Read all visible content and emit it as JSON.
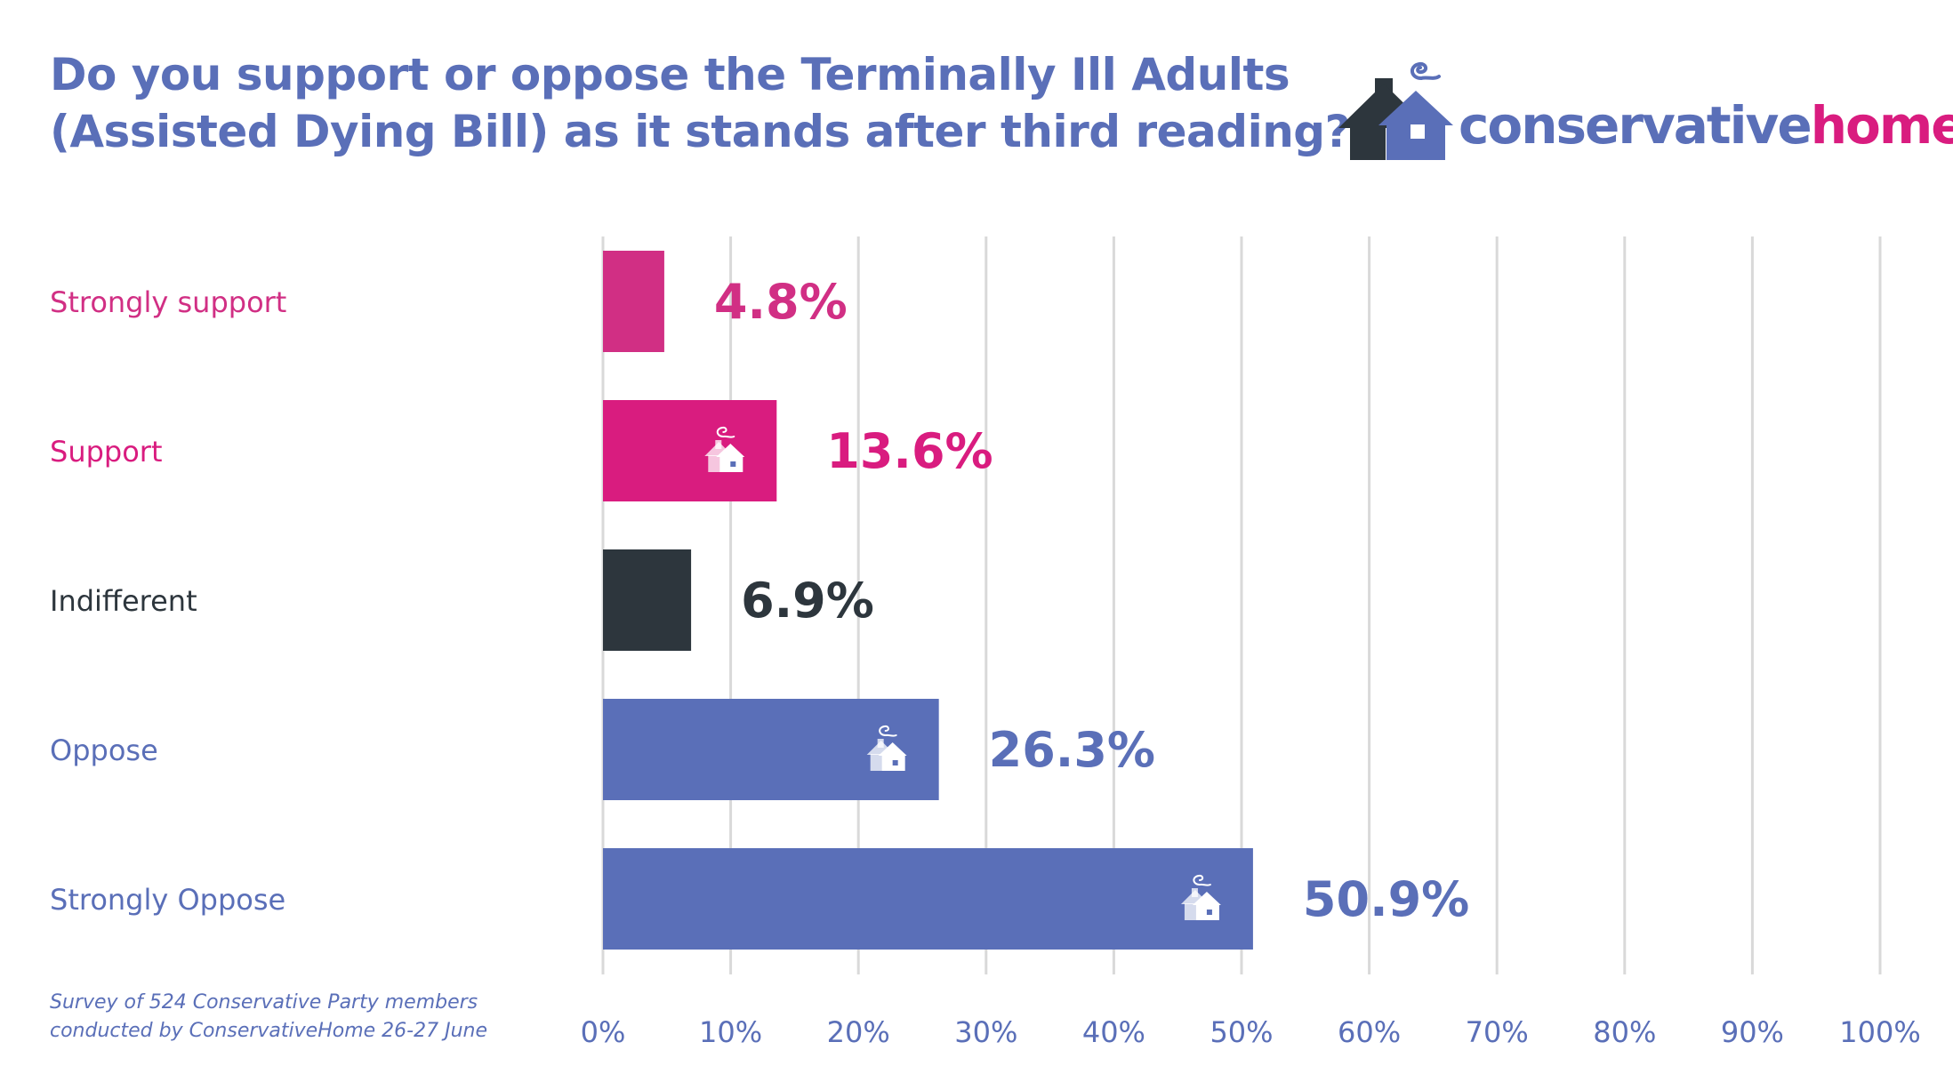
{
  "title": {
    "line1": "Do you support or oppose the Terminally Ill Adults",
    "line2": "(Assisted Dying Bill) as it stands after third reading?"
  },
  "logo": {
    "part1": "conservative",
    "part2": "home",
    "icon": "house-chimney-smoke-icon"
  },
  "footnote": {
    "line1": "Survey of 524 Conservative Party members",
    "line2": "conducted by ConservativeHome 26-27 June"
  },
  "colors": {
    "title": "#5a6fb8",
    "strongly_support": "#d12f84",
    "support": "#d91c7f",
    "indifferent": "#2d363d",
    "oppose": "#5a6fb8",
    "gridline": "#d9d9d9"
  },
  "chart_data": {
    "type": "bar",
    "orientation": "horizontal",
    "categories": [
      "Strongly support",
      "Support",
      "Indifferent",
      "Oppose",
      "Strongly Oppose"
    ],
    "values": [
      4.8,
      13.6,
      6.9,
      26.3,
      50.9
    ],
    "value_labels": [
      "4.8%",
      "13.6%",
      "6.9%",
      "26.3%",
      "50.9%"
    ],
    "bar_colors": [
      "#d12f84",
      "#d91c7f",
      "#2d363d",
      "#5a6fb8",
      "#5a6fb8"
    ],
    "label_colors": [
      "#d12f84",
      "#d91c7f",
      "#2d363d",
      "#5a6fb8",
      "#5a6fb8"
    ],
    "bar_icons": [
      false,
      true,
      false,
      true,
      true
    ],
    "xlim": [
      0,
      100
    ],
    "xticks": [
      0,
      10,
      20,
      30,
      40,
      50,
      60,
      70,
      80,
      90,
      100
    ],
    "xtick_labels": [
      "0%",
      "10%",
      "20%",
      "30%",
      "40%",
      "50%",
      "60%",
      "70%",
      "80%",
      "90%",
      "100%"
    ],
    "grid": true,
    "legend": "none"
  }
}
